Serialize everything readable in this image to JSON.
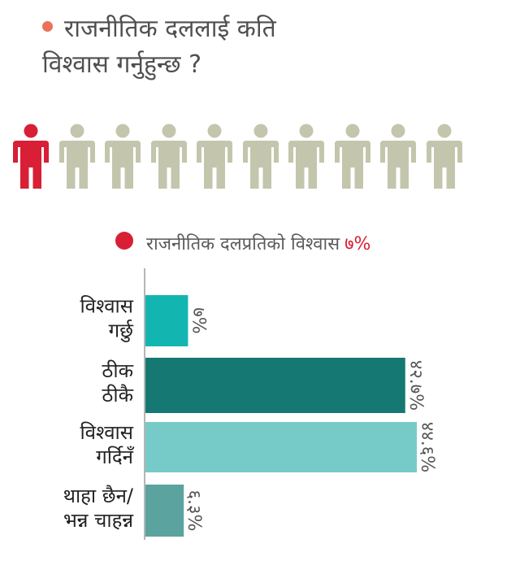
{
  "title": {
    "line1": "राजनीतिक दललाई  कति",
    "line2": "विश्वास गर्नुहुन्छ ?",
    "dot_color": "#e8735a"
  },
  "people_icons": {
    "total": 10,
    "highlighted": 1,
    "highlight_color": "#d81f35",
    "base_color": "#c3c6ac"
  },
  "legend": {
    "label": "राजनीतिक दलप्रतिको विश्वास",
    "value": "७%",
    "color": "#d81f35"
  },
  "chart_data": {
    "type": "bar",
    "orientation": "horizontal",
    "categories": [
      [
        "विश्वास",
        "गर्छु"
      ],
      [
        "ठीक",
        "ठीकै"
      ],
      [
        "विश्वास",
        "गर्दिनँ"
      ],
      [
        "थाहा छैन/",
        "भन्न चाहन्न"
      ]
    ],
    "values": [
      7,
      42.7,
      44.6,
      6.3
    ],
    "value_labels": [
      "७%",
      "४२.७%",
      "४४.६%",
      "६.३%"
    ],
    "value_label_rotation": "rotated 90° clockwise",
    "colors": [
      "#13b5b1",
      "#167872",
      "#76cbc8",
      "#5aa39f"
    ],
    "xlim": [
      0,
      45
    ]
  }
}
